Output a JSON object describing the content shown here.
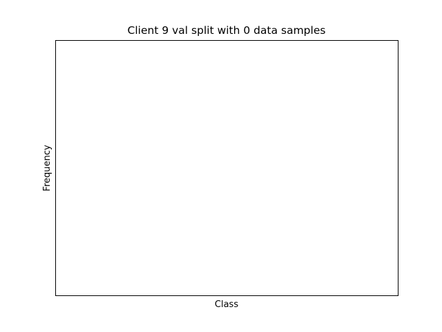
{
  "chart_data": {
    "type": "bar",
    "title": "Client 9 val split with 0 data samples",
    "xlabel": "Class",
    "ylabel": "Frequency",
    "categories": [],
    "values": [],
    "grid": false,
    "legend": "none",
    "colors": {
      "axes": "#000000",
      "background": "#ffffff"
    }
  }
}
